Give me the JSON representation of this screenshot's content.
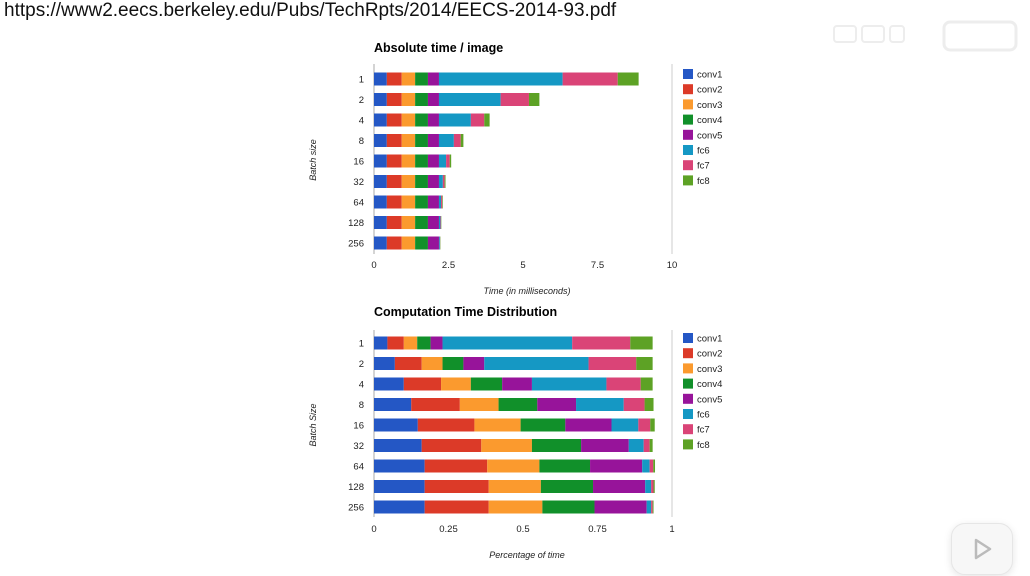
{
  "page": {
    "url": "https://www2.eecs.berkeley.edu/Pubs/TechRpts/2014/EECS-2014-93.pdf"
  },
  "overlay": {
    "watermark_icon": "bilibili-logo",
    "play_icon": "play-icon"
  },
  "colors": {
    "conv1": "#2457c5",
    "conv2": "#dc3a28",
    "conv3": "#fb9a2e",
    "conv4": "#11902a",
    "conv5": "#97149a",
    "fc6": "#1598c4",
    "fc7": "#da4477",
    "fc8": "#5da225",
    "axis": "#aaaaaa"
  },
  "chart_data": [
    {
      "type": "bar",
      "orientation": "horizontal",
      "stacked": true,
      "title": "Absolute time / image",
      "xlabel": "Time (in milliseconds)",
      "ylabel": "Batch size",
      "xlim": [
        0,
        10
      ],
      "xticks": [
        "0",
        "2.5",
        "5",
        "7.5",
        "10"
      ],
      "legend_position": "right",
      "categories": [
        "1",
        "2",
        "4",
        "8",
        "16",
        "32",
        "64",
        "128",
        "256"
      ],
      "series": [
        {
          "name": "conv1",
          "values": [
            0.43,
            0.43,
            0.43,
            0.43,
            0.43,
            0.43,
            0.43,
            0.43,
            0.43
          ]
        },
        {
          "name": "conv2",
          "values": [
            0.5,
            0.5,
            0.5,
            0.5,
            0.5,
            0.5,
            0.5,
            0.5,
            0.5
          ]
        },
        {
          "name": "conv3",
          "values": [
            0.45,
            0.45,
            0.45,
            0.45,
            0.45,
            0.45,
            0.45,
            0.45,
            0.45
          ]
        },
        {
          "name": "conv4",
          "values": [
            0.43,
            0.43,
            0.43,
            0.43,
            0.43,
            0.43,
            0.43,
            0.43,
            0.43
          ]
        },
        {
          "name": "conv5",
          "values": [
            0.37,
            0.37,
            0.37,
            0.37,
            0.37,
            0.37,
            0.37,
            0.37,
            0.37
          ]
        },
        {
          "name": "fc6",
          "values": [
            4.15,
            2.07,
            1.07,
            0.5,
            0.24,
            0.13,
            0.07,
            0.05,
            0.03
          ]
        },
        {
          "name": "fc7",
          "values": [
            1.85,
            0.95,
            0.45,
            0.23,
            0.12,
            0.06,
            0.04,
            0.02,
            0.01
          ]
        },
        {
          "name": "fc8",
          "values": [
            0.7,
            0.35,
            0.18,
            0.09,
            0.05,
            0.03,
            0.02,
            0.01,
            0.01
          ]
        }
      ]
    },
    {
      "type": "bar",
      "orientation": "horizontal",
      "stacked": true,
      "title": "Computation Time Distribution",
      "xlabel": "Percentage of time",
      "ylabel": "Batch Size",
      "xlim": [
        0,
        1
      ],
      "xticks": [
        "0",
        "0.25",
        "0.5",
        "0.75",
        "1"
      ],
      "legend_position": "right",
      "categories": [
        "1",
        "2",
        "4",
        "8",
        "16",
        "32",
        "64",
        "128",
        "256"
      ],
      "series": [
        {
          "name": "conv1",
          "values": [
            0.045,
            0.07,
            0.1,
            0.125,
            0.147,
            0.16,
            0.17,
            0.17,
            0.17
          ]
        },
        {
          "name": "conv2",
          "values": [
            0.055,
            0.09,
            0.125,
            0.163,
            0.19,
            0.2,
            0.21,
            0.215,
            0.215
          ]
        },
        {
          "name": "conv3",
          "values": [
            0.045,
            0.07,
            0.1,
            0.13,
            0.155,
            0.17,
            0.175,
            0.175,
            0.18
          ]
        },
        {
          "name": "conv4",
          "values": [
            0.045,
            0.07,
            0.105,
            0.13,
            0.15,
            0.165,
            0.17,
            0.175,
            0.175
          ]
        },
        {
          "name": "conv5",
          "values": [
            0.04,
            0.07,
            0.1,
            0.13,
            0.155,
            0.16,
            0.175,
            0.175,
            0.175
          ]
        },
        {
          "name": "fc6",
          "values": [
            0.435,
            0.35,
            0.25,
            0.16,
            0.09,
            0.05,
            0.025,
            0.02,
            0.015
          ]
        },
        {
          "name": "fc7",
          "values": [
            0.195,
            0.16,
            0.115,
            0.07,
            0.04,
            0.02,
            0.012,
            0.008,
            0.005
          ]
        },
        {
          "name": "fc8",
          "values": [
            0.075,
            0.055,
            0.04,
            0.03,
            0.015,
            0.01,
            0.006,
            0.004,
            0.003
          ]
        }
      ]
    }
  ]
}
